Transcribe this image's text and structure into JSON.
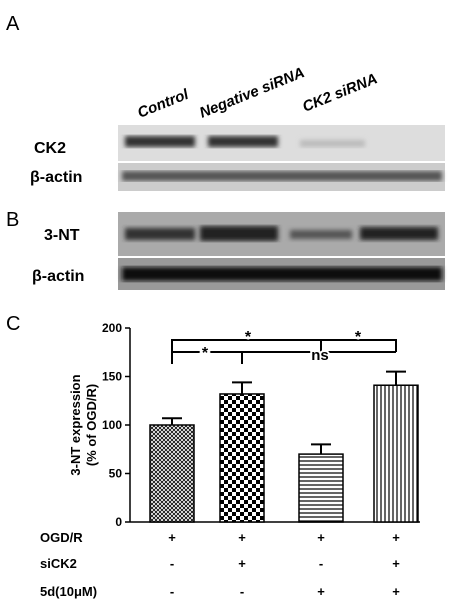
{
  "panels": {
    "a": {
      "letter": "A",
      "columns": [
        "Control",
        "Negative siRNA",
        "CK2 siRNA"
      ],
      "rows": [
        "CK2",
        "β-actin"
      ]
    },
    "b": {
      "letter": "B",
      "rows": [
        "3-NT",
        "β-actin"
      ]
    },
    "c": {
      "letter": "C"
    }
  },
  "chart_data": {
    "type": "bar",
    "ylabel": [
      "3-NT expression",
      "(% of OGD/R)"
    ],
    "categories": [
      null,
      null,
      null,
      null
    ],
    "values": [
      100,
      132,
      70,
      141
    ],
    "errors": [
      7,
      12,
      10,
      14
    ],
    "ylim": [
      0,
      200
    ],
    "yticks": [
      0,
      50,
      100,
      150,
      200
    ],
    "annotations": [
      "*",
      "*",
      "*",
      "ns"
    ],
    "conditions": [
      {
        "name": "OGD/R",
        "values": [
          "+",
          "+",
          "+",
          "+"
        ]
      },
      {
        "name": "siCK2",
        "values": [
          "-",
          "+",
          "-",
          "+"
        ]
      },
      {
        "name": "5d(10μM)",
        "values": [
          "-",
          "-",
          "+",
          "+"
        ]
      }
    ]
  }
}
